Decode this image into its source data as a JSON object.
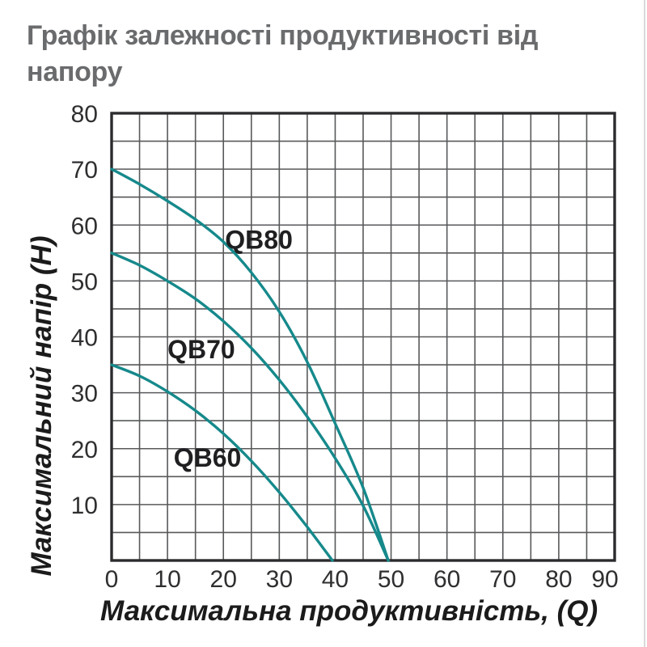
{
  "page": {
    "title_lines": [
      "Графік залежності продуктивності від",
      "напору"
    ]
  },
  "chart_data": {
    "type": "line",
    "title": "Графік залежності продуктивності від напору",
    "xlabel": "Максимальна продуктивність, (Q)",
    "ylabel": "Максимальний напір (H)",
    "xlim": [
      0,
      90
    ],
    "ylim": [
      0,
      80
    ],
    "x_ticks": [
      0,
      10,
      20,
      30,
      40,
      50,
      60,
      70,
      80,
      90
    ],
    "y_ticks": [
      80,
      70,
      60,
      50,
      40,
      30,
      20,
      10
    ],
    "grid": true,
    "grid_step": 5,
    "legend_position": "inline-labels",
    "colors": {
      "curve": "#16898b",
      "grid": "#58595b",
      "border": "#2b2b2d",
      "tick_text": "#2f2f31",
      "axis_title_text": "#1b1b1c",
      "title_text": "#6a6b6d"
    },
    "series": [
      {
        "name": "QB80",
        "label_anchor": [
          20.3,
          55.8
        ],
        "points": [
          [
            0,
            70
          ],
          [
            5,
            67.3
          ],
          [
            10,
            64.3
          ],
          [
            15,
            61
          ],
          [
            20,
            57
          ],
          [
            25,
            51.5
          ],
          [
            30,
            44.5
          ],
          [
            35,
            35.5
          ],
          [
            40,
            24.5
          ],
          [
            45,
            13
          ],
          [
            49.5,
            0
          ]
        ]
      },
      {
        "name": "QB70",
        "label_anchor": [
          10.0,
          36.2
        ],
        "points": [
          [
            0,
            55
          ],
          [
            5,
            52.8
          ],
          [
            10,
            50
          ],
          [
            15,
            46.8
          ],
          [
            20,
            42.8
          ],
          [
            25,
            38
          ],
          [
            30,
            32.3
          ],
          [
            35,
            25.7
          ],
          [
            40,
            18.3
          ],
          [
            45,
            9.8
          ],
          [
            49.5,
            0
          ]
        ]
      },
      {
        "name": "QB60",
        "label_anchor": [
          11.1,
          16.8
        ],
        "points": [
          [
            0,
            35
          ],
          [
            5,
            33
          ],
          [
            10,
            30.2
          ],
          [
            15,
            26.8
          ],
          [
            20,
            22.7
          ],
          [
            25,
            17.8
          ],
          [
            30,
            12.2
          ],
          [
            35,
            6
          ],
          [
            39.5,
            0
          ]
        ]
      }
    ]
  }
}
